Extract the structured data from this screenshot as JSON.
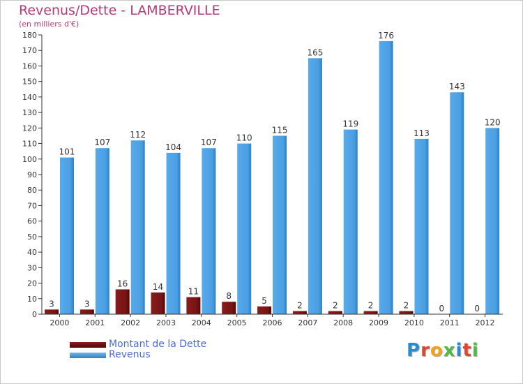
{
  "title": "Revenus/Dette - LAMBERVILLE",
  "subtitle": "(en milliers d'€)",
  "logo": {
    "text": "Proxiti",
    "colors": [
      "#2a8bd1",
      "#e0452f",
      "#f0a21c",
      "#53b848",
      "#2a8bd1",
      "#e0452f",
      "#53b848"
    ]
  },
  "legend": [
    {
      "label": "Montant de la Dette",
      "color": "#6b0f0f"
    },
    {
      "label": "Revenus",
      "color": "#3d95de"
    }
  ],
  "chart_data": {
    "type": "bar",
    "categories": [
      "2000",
      "2001",
      "2002",
      "2003",
      "2004",
      "2005",
      "2006",
      "2007",
      "2008",
      "2009",
      "2010",
      "2011",
      "2012"
    ],
    "series": [
      {
        "name": "Montant de la Dette",
        "color": "#6b0f0f",
        "values": [
          3,
          3,
          16,
          14,
          11,
          8,
          5,
          2,
          2,
          2,
          2,
          0,
          0
        ]
      },
      {
        "name": "Revenus",
        "color": "#3d95de",
        "values": [
          101,
          107,
          112,
          104,
          107,
          110,
          115,
          165,
          119,
          176,
          113,
          143,
          120
        ]
      }
    ],
    "ylim": [
      0,
      180
    ],
    "yticks": [
      0,
      10,
      20,
      30,
      40,
      50,
      60,
      70,
      80,
      90,
      100,
      110,
      120,
      130,
      140,
      150,
      160,
      170,
      180
    ],
    "grid": false,
    "legend_position": "bottom-left",
    "data_labels": true
  }
}
